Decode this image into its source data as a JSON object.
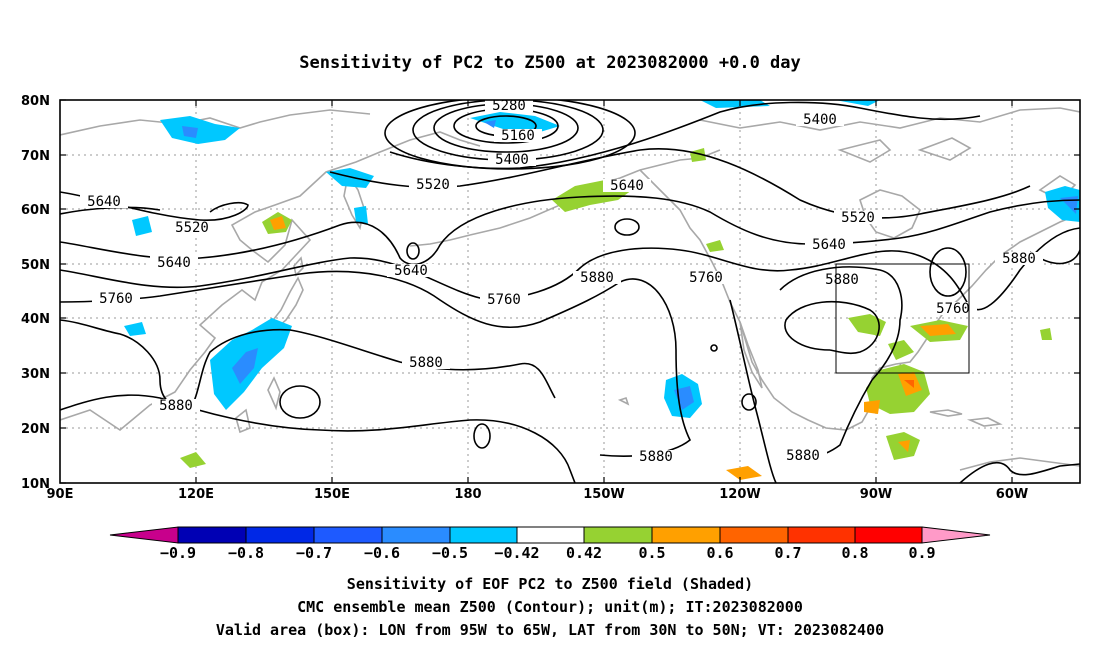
{
  "title": "Sensitivity of PC2 to Z500 at 2023082000 +0.0 day",
  "lat_labels": [
    "80N",
    "70N",
    "60N",
    "50N",
    "40N",
    "30N",
    "20N",
    "10N"
  ],
  "lon_labels": [
    "90E",
    "120E",
    "150E",
    "180",
    "150W",
    "120W",
    "90W",
    "60W"
  ],
  "contour_labels": {
    "z5280": "5280",
    "z5160": "5160",
    "z5400a": "5400",
    "z5400b": "5400",
    "z5520a": "5520",
    "z5520b": "5520",
    "z5520c": "5520",
    "z5640a": "5640",
    "z5640b": "5640",
    "z5640c": "5640",
    "z5640d": "5640",
    "z5640e": "5640",
    "z5760a": "5760",
    "z5760b": "5760",
    "z5760c": "5760",
    "z5760d": "5760",
    "z5880a": "5880",
    "z5880b": "5880",
    "z5880c": "5880",
    "z5880d": "5880",
    "z5880e": "5880",
    "z5880f": "5880",
    "z5880g": "5880"
  },
  "colorbar": {
    "labels": [
      "−0.9",
      "−0.8",
      "−0.7",
      "−0.6",
      "−0.5",
      "−0.42",
      "0.42",
      "0.5",
      "0.6",
      "0.7",
      "0.8",
      "0.9"
    ],
    "colors": [
      "#c8008c",
      "#0000b4",
      "#0028e6",
      "#1e5aff",
      "#2a8cff",
      "#00c8ff",
      "#ffffff",
      "#96d232",
      "#ffa000",
      "#ff6400",
      "#ff3200",
      "#ff0000",
      "#ff9ac8"
    ]
  },
  "valid_box": {
    "lon_west": -95,
    "lon_east": -65,
    "lat_south": 30,
    "lat_north": 50
  },
  "footer": {
    "line1": "Sensitivity of EOF PC2 to Z500 field (Shaded)",
    "line2": "CMC ensemble mean Z500 (Contour); unit(m); IT:2023082000",
    "line3": "Valid area (box): LON from 95W to 65W, LAT from 30N to 50N; VT: 2023082400"
  }
}
